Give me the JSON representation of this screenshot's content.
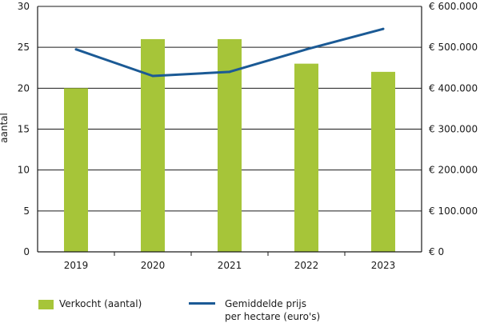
{
  "chart_data": {
    "type": "bar",
    "categories": [
      "2019",
      "2020",
      "2021",
      "2022",
      "2023"
    ],
    "series": [
      {
        "name": "Verkocht (aantal)",
        "type": "bar",
        "axis": "left",
        "color": "#a6c539",
        "values": [
          20,
          26,
          26,
          23,
          22
        ]
      },
      {
        "name": "Gemiddelde prijs per hectare (euro's)",
        "type": "line",
        "axis": "right",
        "color": "#1b5a95",
        "values": [
          495000,
          430000,
          440000,
          495000,
          545000
        ]
      }
    ],
    "ylabel": "aantal",
    "ylim": [
      0,
      30
    ],
    "y_ticks": [
      0,
      5,
      10,
      15,
      20,
      25,
      30
    ],
    "y_tick_labels": [
      "0",
      "5",
      "10",
      "15",
      "20",
      "25",
      "30"
    ],
    "y2lim": [
      0,
      600000
    ],
    "y2_ticks": [
      0,
      100000,
      200000,
      300000,
      400000,
      500000,
      600000
    ],
    "y2_tick_labels": [
      "€ 0",
      "€ 100.000",
      "€ 200.000",
      "€ 300.000",
      "€ 400.000",
      "€ 500.000",
      "€ 600.000"
    ],
    "grid": true,
    "legend_position": "bottom"
  },
  "legend": {
    "bar_label": "Verkocht (aantal)",
    "line_label_1": "Gemiddelde prijs",
    "line_label_2": "per hectare (euro's)"
  }
}
